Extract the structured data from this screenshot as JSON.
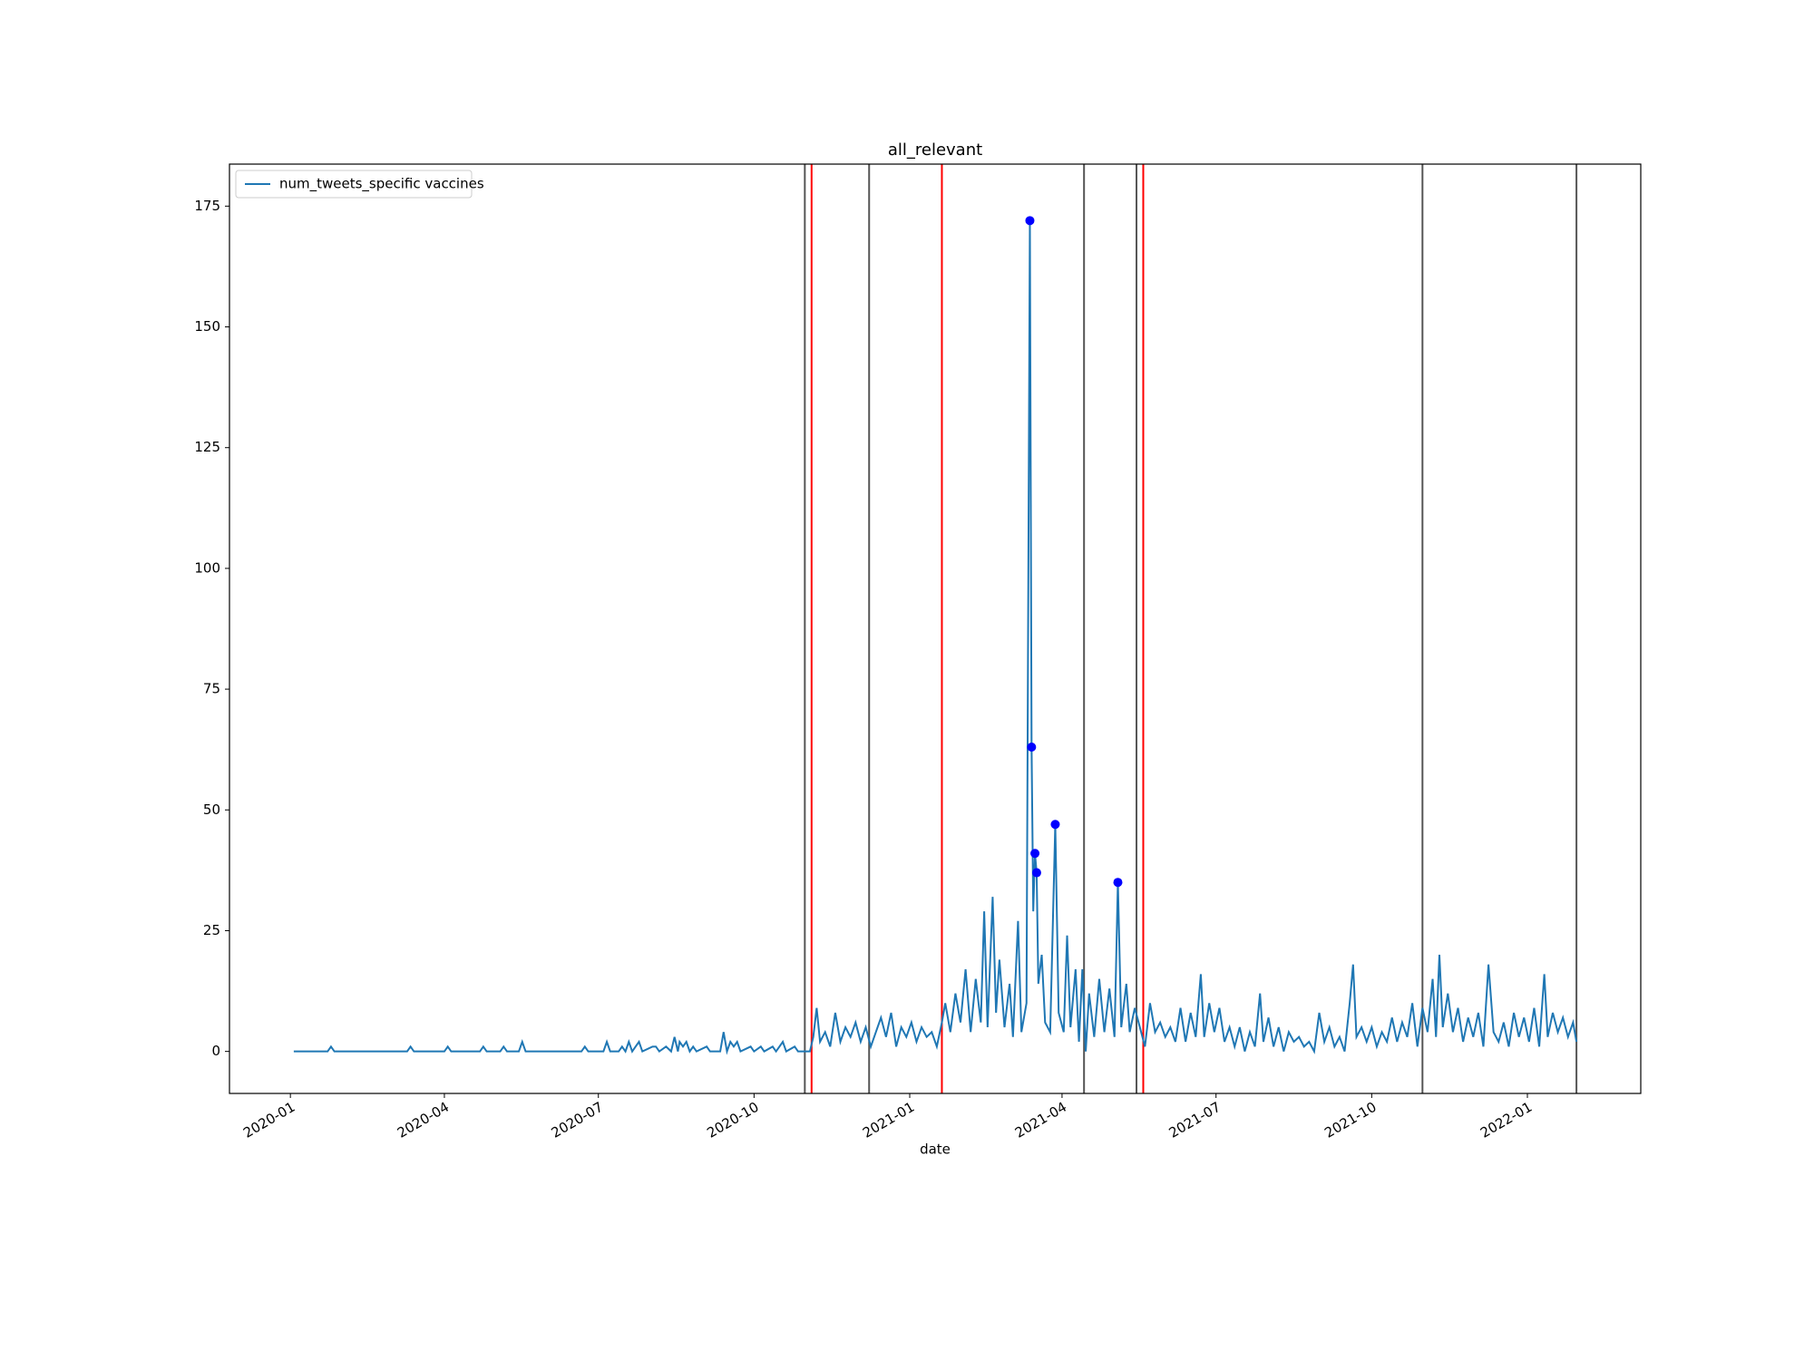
{
  "chart_data": {
    "type": "line",
    "title": "all_relevant",
    "xlabel": "date",
    "xlim": [
      "2019-11-26",
      "2022-03-09"
    ],
    "xticks": [
      {
        "value": "2020-01-01",
        "label": "2020-01"
      },
      {
        "value": "2020-04-01",
        "label": "2020-04"
      },
      {
        "value": "2020-07-01",
        "label": "2020-07"
      },
      {
        "value": "2020-10-01",
        "label": "2020-10"
      },
      {
        "value": "2021-01-01",
        "label": "2021-01"
      },
      {
        "value": "2021-04-01",
        "label": "2021-04"
      },
      {
        "value": "2021-07-01",
        "label": "2021-07"
      },
      {
        "value": "2021-10-01",
        "label": "2021-10"
      },
      {
        "value": "2022-01-01",
        "label": "2022-01"
      }
    ],
    "ylim": [
      -8.7,
      183.7
    ],
    "yticks": [
      0,
      25,
      50,
      75,
      100,
      125,
      150,
      175
    ],
    "legend": "upper left",
    "series": [
      {
        "name": "num_tweets_specific vaccines",
        "color": "#1f77b4",
        "x": [
          "2020-01-03",
          "2020-01-23",
          "2020-01-25",
          "2020-01-27",
          "2020-03-10",
          "2020-03-12",
          "2020-03-14",
          "2020-04-01",
          "2020-04-03",
          "2020-04-05",
          "2020-04-22",
          "2020-04-24",
          "2020-04-26",
          "2020-05-04",
          "2020-05-06",
          "2020-05-08",
          "2020-05-15",
          "2020-05-17",
          "2020-05-19",
          "2020-06-21",
          "2020-06-23",
          "2020-06-25",
          "2020-07-04",
          "2020-07-06",
          "2020-07-08",
          "2020-07-13",
          "2020-07-15",
          "2020-07-17",
          "2020-07-19",
          "2020-07-21",
          "2020-07-23",
          "2020-07-25",
          "2020-07-27",
          "2020-08-02",
          "2020-08-04",
          "2020-08-06",
          "2020-08-10",
          "2020-08-13",
          "2020-08-15",
          "2020-08-17",
          "2020-08-18",
          "2020-08-20",
          "2020-08-22",
          "2020-08-24",
          "2020-08-26",
          "2020-08-28",
          "2020-09-03",
          "2020-09-05",
          "2020-09-11",
          "2020-09-13",
          "2020-09-15",
          "2020-09-17",
          "2020-09-19",
          "2020-09-21",
          "2020-09-23",
          "2020-09-29",
          "2020-10-01",
          "2020-10-05",
          "2020-10-07",
          "2020-10-12",
          "2020-10-14",
          "2020-10-18",
          "2020-10-20",
          "2020-10-25",
          "2020-10-27",
          "2020-11-03",
          "2020-11-05",
          "2020-11-07",
          "2020-11-09",
          "2020-11-12",
          "2020-11-15",
          "2020-11-18",
          "2020-11-21",
          "2020-11-24",
          "2020-11-27",
          "2020-11-30",
          "2020-12-03",
          "2020-12-06",
          "2020-12-09",
          "2020-12-12",
          "2020-12-15",
          "2020-12-18",
          "2020-12-21",
          "2020-12-24",
          "2020-12-27",
          "2020-12-30",
          "2021-01-02",
          "2021-01-05",
          "2021-01-08",
          "2021-01-11",
          "2021-01-14",
          "2021-01-17",
          "2021-01-20",
          "2021-01-22",
          "2021-01-25",
          "2021-01-28",
          "2021-01-31",
          "2021-02-03",
          "2021-02-06",
          "2021-02-09",
          "2021-02-12",
          "2021-02-14",
          "2021-02-16",
          "2021-02-19",
          "2021-02-21",
          "2021-02-23",
          "2021-02-26",
          "2021-03-01",
          "2021-03-03",
          "2021-03-06",
          "2021-03-08",
          "2021-03-11",
          "2021-03-13",
          "2021-03-14",
          "2021-03-15",
          "2021-03-16",
          "2021-03-17",
          "2021-03-18",
          "2021-03-20",
          "2021-03-22",
          "2021-03-25",
          "2021-03-28",
          "2021-03-30",
          "2021-04-02",
          "2021-04-04",
          "2021-04-06",
          "2021-04-09",
          "2021-04-11",
          "2021-04-13",
          "2021-04-15",
          "2021-04-17",
          "2021-04-20",
          "2021-04-23",
          "2021-04-26",
          "2021-04-29",
          "2021-05-02",
          "2021-05-04",
          "2021-05-06",
          "2021-05-09",
          "2021-05-11",
          "2021-05-14",
          "2021-05-17",
          "2021-05-20",
          "2021-05-23",
          "2021-05-26",
          "2021-05-29",
          "2021-06-01",
          "2021-06-04",
          "2021-06-07",
          "2021-06-10",
          "2021-06-13",
          "2021-06-16",
          "2021-06-19",
          "2021-06-22",
          "2021-06-24",
          "2021-06-27",
          "2021-06-30",
          "2021-07-03",
          "2021-07-06",
          "2021-07-09",
          "2021-07-12",
          "2021-07-15",
          "2021-07-18",
          "2021-07-21",
          "2021-07-24",
          "2021-07-27",
          "2021-07-29",
          "2021-08-01",
          "2021-08-04",
          "2021-08-07",
          "2021-08-10",
          "2021-08-13",
          "2021-08-16",
          "2021-08-19",
          "2021-08-22",
          "2021-08-25",
          "2021-08-28",
          "2021-08-31",
          "2021-09-03",
          "2021-09-06",
          "2021-09-09",
          "2021-09-12",
          "2021-09-15",
          "2021-09-18",
          "2021-09-20",
          "2021-09-22",
          "2021-09-25",
          "2021-09-28",
          "2021-10-01",
          "2021-10-04",
          "2021-10-07",
          "2021-10-10",
          "2021-10-13",
          "2021-10-16",
          "2021-10-19",
          "2021-10-22",
          "2021-10-25",
          "2021-10-28",
          "2021-10-31",
          "2021-11-03",
          "2021-11-06",
          "2021-11-08",
          "2021-11-10",
          "2021-11-12",
          "2021-11-15",
          "2021-11-18",
          "2021-11-21",
          "2021-11-24",
          "2021-11-27",
          "2021-11-30",
          "2021-12-03",
          "2021-12-06",
          "2021-12-09",
          "2021-12-12",
          "2021-12-15",
          "2021-12-18",
          "2021-12-21",
          "2021-12-24",
          "2021-12-27",
          "2021-12-30",
          "2022-01-02",
          "2022-01-05",
          "2022-01-08",
          "2022-01-11",
          "2022-01-13",
          "2022-01-16",
          "2022-01-19",
          "2022-01-22",
          "2022-01-25",
          "2022-01-28",
          "2022-01-30"
        ],
        "values": [
          0,
          0,
          1,
          0,
          0,
          1,
          0,
          0,
          1,
          0,
          0,
          1,
          0,
          0,
          1,
          0,
          0,
          2,
          0,
          0,
          1,
          0,
          0,
          2,
          0,
          0,
          1,
          0,
          2,
          0,
          1,
          2,
          0,
          1,
          1,
          0,
          1,
          0,
          3,
          0,
          2,
          1,
          2,
          0,
          1,
          0,
          1,
          0,
          0,
          4,
          0,
          2,
          1,
          2,
          0,
          1,
          0,
          1,
          0,
          1,
          0,
          2,
          0,
          1,
          0,
          0,
          3,
          9,
          2,
          4,
          1,
          8,
          2,
          5,
          3,
          6,
          2,
          5,
          1,
          4,
          7,
          3,
          8,
          1,
          5,
          3,
          6,
          2,
          5,
          3,
          4,
          1,
          6,
          10,
          4,
          12,
          6,
          17,
          4,
          15,
          6,
          29,
          5,
          32,
          8,
          19,
          5,
          14,
          3,
          27,
          4,
          10,
          172,
          63,
          29,
          41,
          37,
          14,
          20,
          6,
          4,
          47,
          8,
          4,
          24,
          5,
          17,
          2,
          17,
          0,
          12,
          3,
          15,
          4,
          13,
          3,
          35,
          5,
          14,
          4,
          9,
          5,
          1,
          10,
          4,
          6,
          3,
          5,
          2,
          9,
          2,
          8,
          3,
          16,
          3,
          10,
          4,
          9,
          2,
          5,
          1,
          5,
          0,
          4,
          1,
          12,
          2,
          7,
          1,
          5,
          0,
          4,
          2,
          3,
          1,
          2,
          0,
          8,
          2,
          5,
          1,
          3,
          0,
          10,
          18,
          3,
          5,
          2,
          5,
          1,
          4,
          2,
          7,
          2,
          6,
          3,
          10,
          1,
          9,
          4,
          15,
          3,
          20,
          5,
          12,
          4,
          9,
          2,
          7,
          3,
          8,
          1,
          18,
          4,
          2,
          6,
          1,
          8,
          3,
          7,
          2,
          9,
          1,
          16,
          3,
          8,
          4,
          7,
          3,
          6,
          2
        ]
      }
    ],
    "points": {
      "color": "#0000ff",
      "x": [
        "2021-03-13",
        "2021-03-14",
        "2021-03-16",
        "2021-03-17",
        "2021-03-28",
        "2021-05-04"
      ],
      "values": [
        172,
        63,
        41,
        37,
        47,
        35
      ]
    },
    "vlines": [
      {
        "x": "2020-10-31",
        "color": "#555555"
      },
      {
        "x": "2020-12-08",
        "color": "#555555"
      },
      {
        "x": "2021-04-14",
        "color": "#555555"
      },
      {
        "x": "2021-05-15",
        "color": "#555555"
      },
      {
        "x": "2021-10-31",
        "color": "#555555"
      },
      {
        "x": "2022-01-30",
        "color": "#555555"
      },
      {
        "x": "2020-11-04",
        "color": "#ff0000"
      },
      {
        "x": "2021-01-20",
        "color": "#ff0000"
      },
      {
        "x": "2021-05-19",
        "color": "#ff0000"
      }
    ]
  }
}
